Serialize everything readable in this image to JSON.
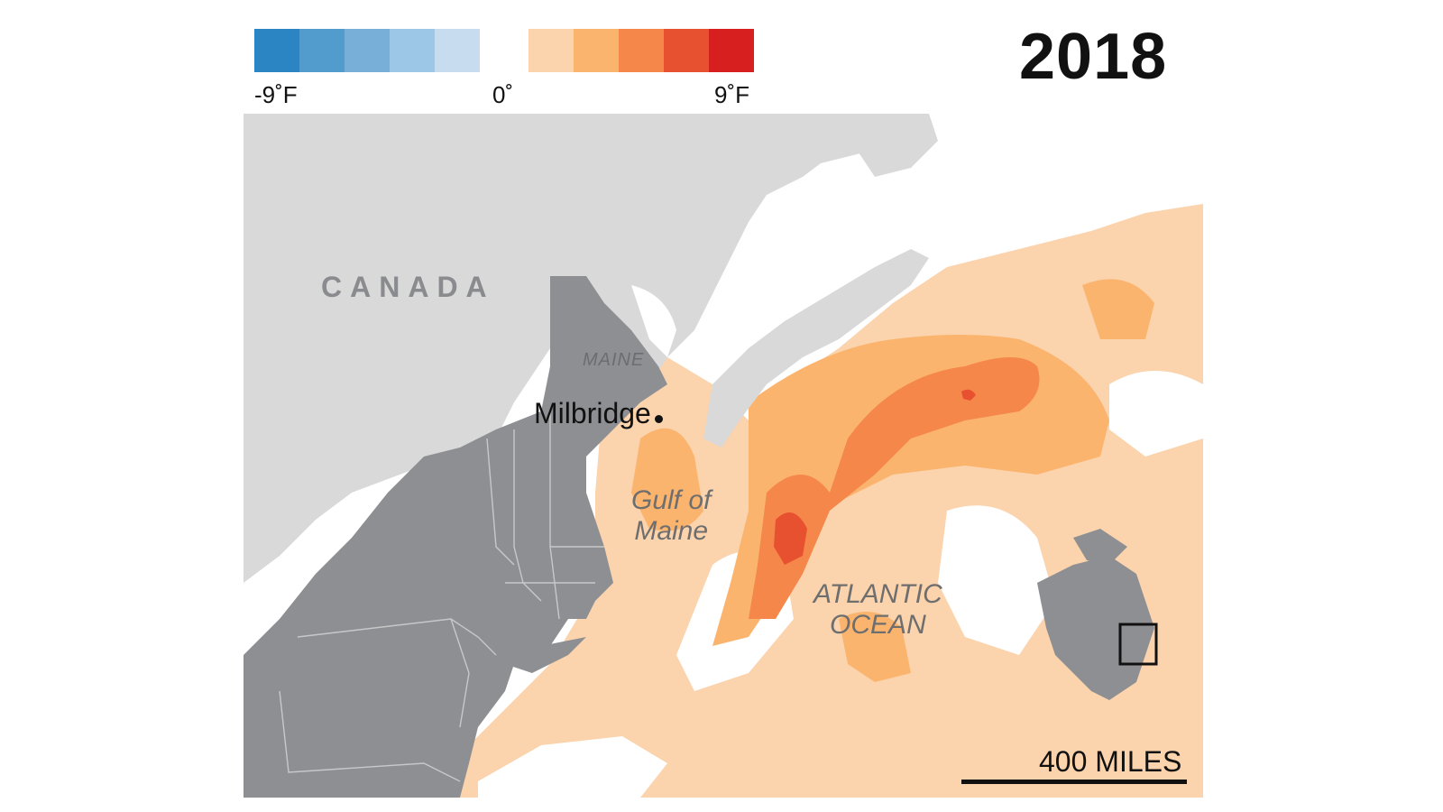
{
  "year": "2018",
  "legend": {
    "min_label": "-9˚F",
    "mid_label": "0˚",
    "max_label": "9˚F",
    "cool_colors": [
      "#2b85c2",
      "#519ccd",
      "#77afd9",
      "#9dc7e6",
      "#c7ddef"
    ],
    "warm_colors": [
      "#fbd3ac",
      "#fbb46e",
      "#f5874b",
      "#e8512f",
      "#d71f1f"
    ]
  },
  "map": {
    "labels": {
      "country": "CANADA",
      "state": "MAINE",
      "gulf_line1": "Gulf of",
      "gulf_line2": "Maine",
      "ocean_line1": "ATLANTIC",
      "ocean_line2": "OCEAN",
      "town": "Milbridge"
    },
    "colors": {
      "canada_land": "#d9d9d9",
      "us_land": "#8e8f92",
      "state_lines": "#c8c8ca",
      "warm_1": "#fbd3ac",
      "warm_2": "#fbb46e",
      "warm_3": "#f5874b",
      "warm_4": "#e8512f"
    }
  },
  "scale": {
    "label": "400 MILES"
  },
  "inset": {
    "description_icon": "locator-map-icon"
  }
}
